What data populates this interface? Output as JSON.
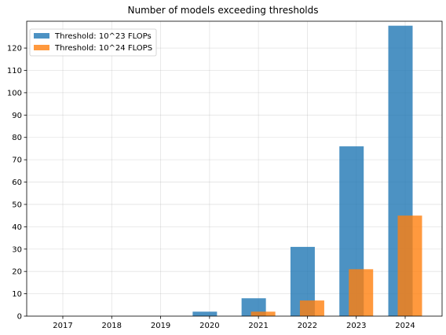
{
  "chart_data": {
    "type": "bar",
    "title": "Number of models exceeding thresholds",
    "xlabel": "",
    "ylabel": "",
    "categories": [
      "2017",
      "2018",
      "2019",
      "2020",
      "2021",
      "2022",
      "2023",
      "2024"
    ],
    "series": [
      {
        "name": "Threshold: 10^23 FLOPs",
        "color": "#1f77b4",
        "values": [
          0,
          0,
          0,
          2,
          8,
          31,
          76,
          130
        ]
      },
      {
        "name": "Threshold: 10^24 FLOPS",
        "color": "#ff7f0e",
        "values": [
          0,
          0,
          0,
          0,
          2,
          7,
          21,
          45
        ]
      }
    ],
    "ylim": [
      0,
      132
    ],
    "yticks": [
      0,
      10,
      20,
      30,
      40,
      50,
      60,
      70,
      80,
      90,
      100,
      110,
      120
    ],
    "grid": true,
    "legend_position": "top-left"
  }
}
